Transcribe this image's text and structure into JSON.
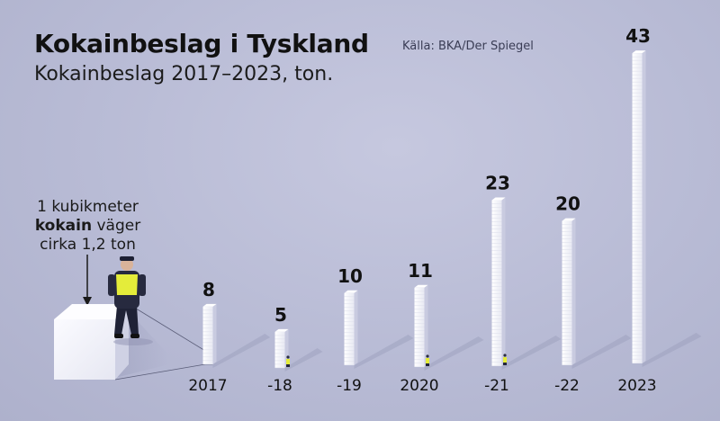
{
  "title": "Kokainbeslag i Tyskland",
  "subtitle": "Kokainbeslag 2017–2023, ton.",
  "source": "Källa: BKA/Der Spiegel",
  "note": {
    "line1": "1 kubikmeter",
    "bold_word": "kokain",
    "line2_rest": " väger",
    "line3": "cirka 1,2 ton"
  },
  "colors": {
    "background": "#b9bcd6",
    "pillar_front": "#f3f4fa",
    "pillar_side": "#c9cbe0",
    "vest": "#e4ec3a",
    "text": "#111111"
  },
  "chart_data": {
    "type": "bar",
    "title": "Kokainbeslag i Tyskland",
    "subtitle": "Kokainbeslag 2017–2023, ton.",
    "categories": [
      "2017",
      "-18",
      "-19",
      "2020",
      "-21",
      "-22",
      "2023"
    ],
    "values": [
      8,
      5,
      10,
      11,
      23,
      20,
      43
    ],
    "xlabel": "",
    "ylabel": "",
    "grid": false,
    "legend": "none"
  }
}
